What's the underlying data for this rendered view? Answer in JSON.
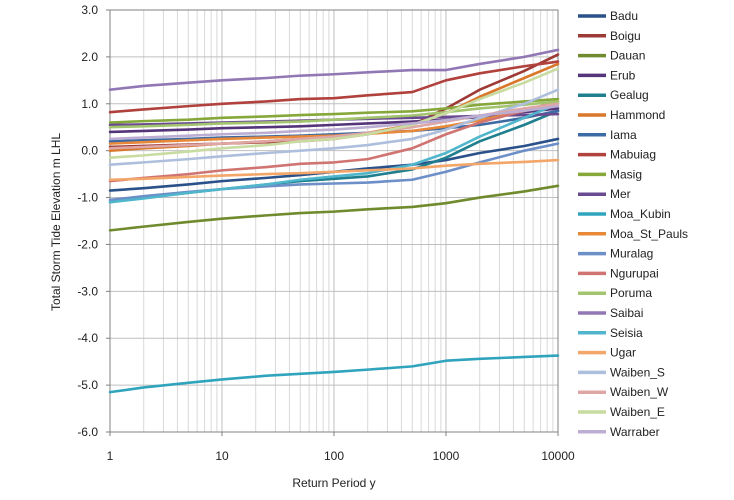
{
  "chart_data": {
    "type": "line",
    "title": "",
    "xlabel": "Return Period  y",
    "ylabel": "Total Storm Tide Elevation  m LHL",
    "xscale": "log",
    "xlim": [
      1,
      10000
    ],
    "ylim": [
      -6.0,
      3.0
    ],
    "grid": true,
    "legend_position": "right",
    "x_ticks": [
      "1",
      "10",
      "100",
      "1000",
      "10000"
    ],
    "y_ticks": [
      "3.0",
      "2.0",
      "1.0",
      "0.0",
      "-1.0",
      "-2.0",
      "-3.0",
      "-4.0",
      "-5.0",
      "-6.0"
    ],
    "x": [
      1,
      2,
      5,
      10,
      25,
      50,
      100,
      200,
      500,
      1000,
      2000,
      5000,
      10000
    ],
    "series": [
      {
        "name": "Badu",
        "color": "#2a5189",
        "values": [
          -0.85,
          -0.8,
          -0.72,
          -0.65,
          -0.58,
          -0.52,
          -0.45,
          -0.38,
          -0.3,
          -0.2,
          -0.05,
          0.1,
          0.25
        ]
      },
      {
        "name": "Boigu",
        "color": "#9e3a36",
        "values": [
          0.08,
          0.1,
          0.13,
          0.15,
          0.18,
          0.2,
          0.25,
          0.35,
          0.55,
          0.9,
          1.3,
          1.7,
          2.05
        ]
      },
      {
        "name": "Dauan",
        "color": "#6f8b2d",
        "values": [
          -1.7,
          -1.62,
          -1.52,
          -1.45,
          -1.38,
          -1.33,
          -1.3,
          -1.25,
          -1.2,
          -1.12,
          -1.0,
          -0.87,
          -0.75
        ]
      },
      {
        "name": "Erub",
        "color": "#55357a",
        "values": [
          0.4,
          0.42,
          0.45,
          0.48,
          0.5,
          0.52,
          0.55,
          0.58,
          0.62,
          0.66,
          0.72,
          0.82,
          0.9
        ]
      },
      {
        "name": "Gealug",
        "color": "#1f7f8f",
        "values": [
          -1.1,
          -1.0,
          -0.9,
          -0.82,
          -0.72,
          -0.65,
          -0.6,
          -0.55,
          -0.4,
          -0.15,
          0.2,
          0.55,
          0.85
        ]
      },
      {
        "name": "Hammond",
        "color": "#d9772a",
        "values": [
          0.0,
          0.05,
          0.1,
          0.15,
          0.2,
          0.25,
          0.3,
          0.38,
          0.55,
          0.8,
          1.15,
          1.55,
          1.85
        ]
      },
      {
        "name": "Iama",
        "color": "#3e6aa3",
        "values": [
          0.2,
          0.22,
          0.25,
          0.28,
          0.3,
          0.32,
          0.35,
          0.38,
          0.42,
          0.48,
          0.55,
          0.7,
          0.85
        ]
      },
      {
        "name": "Mabuiag",
        "color": "#b0413d",
        "values": [
          0.82,
          0.88,
          0.95,
          1.0,
          1.05,
          1.1,
          1.12,
          1.18,
          1.25,
          1.5,
          1.65,
          1.8,
          1.9
        ]
      },
      {
        "name": "Masig",
        "color": "#86a83b",
        "values": [
          0.6,
          0.63,
          0.66,
          0.7,
          0.73,
          0.76,
          0.78,
          0.81,
          0.84,
          0.9,
          0.98,
          1.05,
          1.1
        ]
      },
      {
        "name": "Mer",
        "color": "#6a4b91",
        "values": [
          0.55,
          0.56,
          0.58,
          0.6,
          0.62,
          0.64,
          0.66,
          0.68,
          0.7,
          0.72,
          0.74,
          0.76,
          0.78
        ]
      },
      {
        "name": "Moa_Kubin",
        "color": "#31a4bd",
        "values": [
          -5.15,
          -5.05,
          -4.95,
          -4.88,
          -4.8,
          -4.76,
          -4.72,
          -4.67,
          -4.6,
          -4.48,
          -4.44,
          -4.4,
          -4.37
        ]
      },
      {
        "name": "Moa_St_Pauls",
        "color": "#e8893a",
        "values": [
          0.15,
          0.18,
          0.22,
          0.25,
          0.28,
          0.3,
          0.32,
          0.36,
          0.42,
          0.52,
          0.65,
          0.85,
          1.05
        ]
      },
      {
        "name": "Muralag",
        "color": "#6c8fc8",
        "values": [
          -1.05,
          -0.97,
          -0.88,
          -0.82,
          -0.76,
          -0.72,
          -0.7,
          -0.68,
          -0.62,
          -0.45,
          -0.25,
          0.0,
          0.15
        ]
      },
      {
        "name": "Ngurupai",
        "color": "#d07472",
        "values": [
          -0.65,
          -0.58,
          -0.5,
          -0.42,
          -0.35,
          -0.28,
          -0.25,
          -0.18,
          0.05,
          0.35,
          0.6,
          0.85,
          1.05
        ]
      },
      {
        "name": "Poruma",
        "color": "#a3c46e",
        "values": [
          0.5,
          0.52,
          0.55,
          0.58,
          0.6,
          0.62,
          0.66,
          0.7,
          0.75,
          0.82,
          0.9,
          0.98,
          1.05
        ]
      },
      {
        "name": "Saibai",
        "color": "#9277b5",
        "values": [
          1.3,
          1.38,
          1.45,
          1.5,
          1.55,
          1.6,
          1.63,
          1.67,
          1.72,
          1.72,
          1.85,
          2.0,
          2.15
        ]
      },
      {
        "name": "Seisia",
        "color": "#4fb6cc",
        "values": [
          -1.1,
          -1.02,
          -0.9,
          -0.82,
          -0.72,
          -0.62,
          -0.55,
          -0.48,
          -0.3,
          -0.05,
          0.3,
          0.7,
          1.0
        ]
      },
      {
        "name": "Ugar",
        "color": "#f2a66a",
        "values": [
          -0.62,
          -0.6,
          -0.56,
          -0.53,
          -0.5,
          -0.48,
          -0.45,
          -0.42,
          -0.38,
          -0.32,
          -0.28,
          -0.24,
          -0.2
        ]
      },
      {
        "name": "Waiben_S",
        "color": "#adbfdc",
        "values": [
          -0.3,
          -0.25,
          -0.18,
          -0.12,
          -0.05,
          0.0,
          0.05,
          0.12,
          0.25,
          0.45,
          0.7,
          1.0,
          1.3
        ]
      },
      {
        "name": "Waiben_W",
        "color": "#dea7a5",
        "values": [
          0.05,
          0.08,
          0.12,
          0.15,
          0.2,
          0.25,
          0.3,
          0.38,
          0.5,
          0.62,
          0.75,
          0.9,
          1.0
        ]
      },
      {
        "name": "Waiben_E",
        "color": "#c8dca2",
        "values": [
          -0.15,
          -0.1,
          -0.02,
          0.05,
          0.12,
          0.2,
          0.25,
          0.35,
          0.55,
          0.8,
          1.1,
          1.45,
          1.75
        ]
      },
      {
        "name": "Warraber",
        "color": "#bcaed2",
        "values": [
          0.25,
          0.28,
          0.32,
          0.35,
          0.38,
          0.42,
          0.45,
          0.5,
          0.58,
          0.65,
          0.75,
          0.85,
          0.95
        ]
      }
    ]
  }
}
